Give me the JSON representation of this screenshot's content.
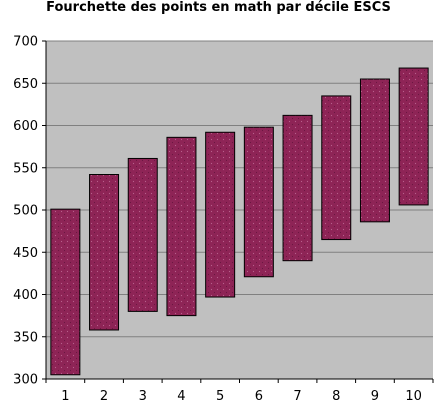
{
  "chart_data": {
    "type": "bar",
    "subtype": "floating-range",
    "title": "Fourchette des points en math par décile ESCS",
    "categories": [
      "1",
      "2",
      "3",
      "4",
      "5",
      "6",
      "7",
      "8",
      "9",
      "10"
    ],
    "series": [
      {
        "low": [
          305,
          358,
          380,
          375,
          397,
          421,
          440,
          465,
          486,
          506
        ],
        "high": [
          501,
          542,
          561,
          586,
          592,
          598,
          612,
          635,
          655,
          668
        ]
      }
    ],
    "yticks": [
      300,
      350,
      400,
      450,
      500,
      550,
      600,
      650,
      700
    ],
    "ylim": [
      300,
      700
    ],
    "grid": true,
    "legend": "none",
    "colors": {
      "bar_fill": "#8e2456",
      "bar_stroke": "#000000",
      "plot_background": "#c0c0c0",
      "gridline": "#808080"
    }
  }
}
